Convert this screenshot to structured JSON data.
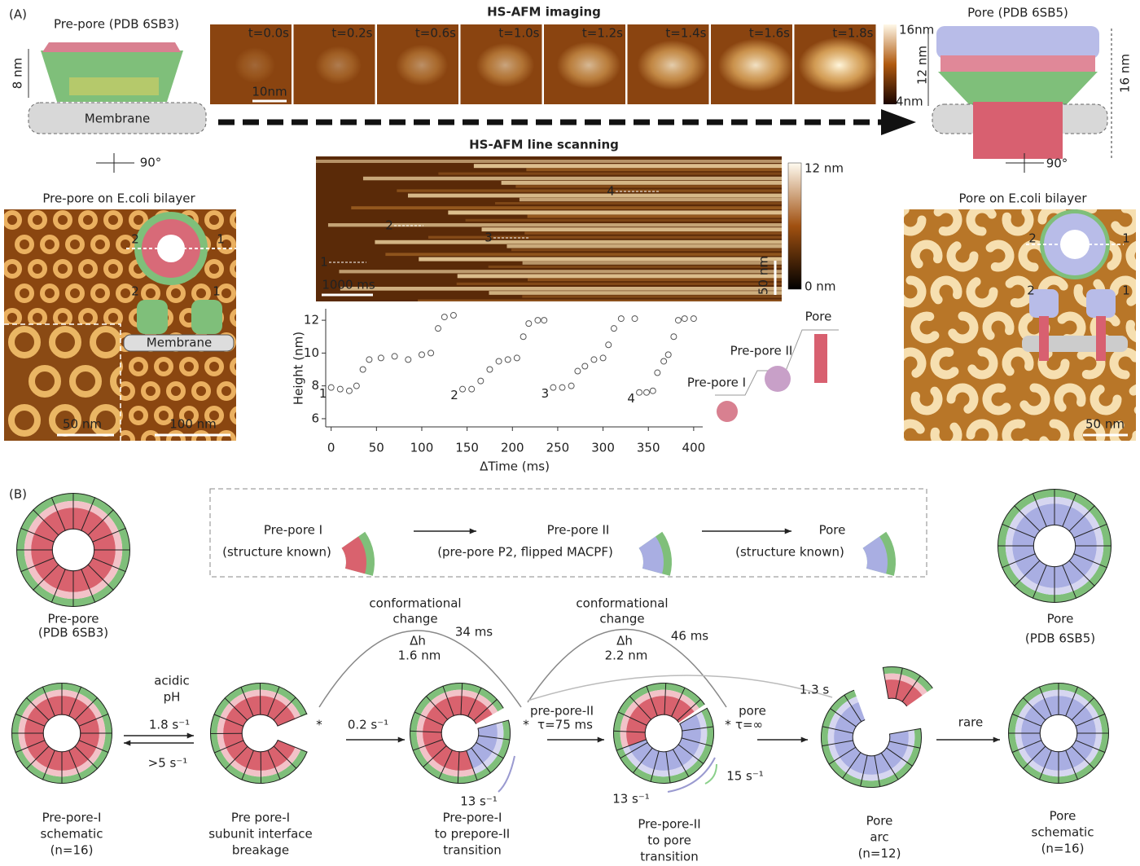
{
  "panel_a": {
    "label": "(A)",
    "prepore_model": {
      "title": "Pre-pore (PDB 6SB3)",
      "height": "8 nm",
      "membrane": "Membrane",
      "rotation": "90°"
    },
    "imaging": {
      "title": "HS-AFM imaging",
      "frames": [
        "t=0.0s",
        "t=0.2s",
        "t=0.6s",
        "t=1.0s",
        "t=1.2s",
        "t=1.4s",
        "t=1.6s",
        "t=1.8s"
      ],
      "scale_bar": "10nm",
      "colorbar_max": "16nm",
      "colorbar_min": "4nm",
      "height_change": "12 nm"
    },
    "pore_model": {
      "title": "Pore (PDB 6SB5)",
      "height": "16 nm",
      "rotation": "90°"
    },
    "prepore_afm": {
      "title": "Pre-pore on E.coli bilayer",
      "markers": [
        "2",
        "1",
        "2",
        "1"
      ],
      "membrane": "Membrane",
      "scale_inset": "50 nm",
      "scale_main": "100 nm"
    },
    "line_scan": {
      "title": "HS-AFM line scanning",
      "colorbar_max": "12 nm",
      "colorbar_min": "0 nm",
      "time_bar": "1000 ms",
      "space_bar": "50 nm",
      "events": [
        "1",
        "2",
        "3",
        "4"
      ]
    },
    "height_plot": {
      "type": "scatter",
      "x_label": "ΔTime (ms)",
      "y_label": "Height (nm)",
      "xlim": [
        -6,
        410
      ],
      "ylim": [
        5.5,
        12.7
      ],
      "xticks": [
        0,
        50,
        100,
        150,
        200,
        250,
        300,
        350,
        400
      ],
      "yticks": [
        6,
        8,
        10,
        12
      ],
      "series": [
        {
          "name": "1",
          "color": "#555555",
          "x": [
            0,
            10,
            20,
            28,
            35,
            42,
            55,
            70,
            85,
            100,
            110,
            118,
            125,
            135
          ],
          "y": [
            7.9,
            7.8,
            7.7,
            8.0,
            9.0,
            9.6,
            9.7,
            9.8,
            9.6,
            9.9,
            10.0,
            11.5,
            12.2,
            12.3
          ]
        },
        {
          "name": "2",
          "color": "#555555",
          "x": [
            145,
            155,
            165,
            175,
            185,
            195,
            205,
            212,
            218,
            228,
            235
          ],
          "y": [
            7.8,
            7.8,
            8.3,
            9.0,
            9.5,
            9.6,
            9.7,
            11.0,
            11.8,
            12.0,
            12.0
          ]
        },
        {
          "name": "3",
          "color": "#555555",
          "x": [
            245,
            255,
            265,
            272,
            280,
            290,
            300,
            306,
            312,
            320,
            335
          ],
          "y": [
            7.9,
            7.9,
            8.0,
            8.9,
            9.2,
            9.6,
            9.7,
            10.5,
            11.5,
            12.1,
            12.1
          ]
        },
        {
          "name": "4",
          "color": "#555555",
          "x": [
            340,
            348,
            355,
            360,
            367,
            372,
            378,
            383,
            390,
            400
          ],
          "y": [
            7.6,
            7.6,
            7.7,
            8.8,
            9.5,
            9.9,
            11.0,
            12.0,
            12.1,
            12.1
          ]
        }
      ],
      "states": [
        "Pre-pore I",
        "Pre-pore II",
        "Pore"
      ]
    },
    "pore_afm": {
      "title": "Pore on E.coli bilayer",
      "markers": [
        "2",
        "1",
        "2",
        "1"
      ],
      "scale": "50 nm"
    }
  },
  "panel_b": {
    "label": "(B)",
    "prepore_structure": {
      "name": "Pre-pore",
      "pdb": "(PDB 6SB3)"
    },
    "pore_structure": {
      "name": "Pore",
      "pdb": "(PDB 6SB5)"
    },
    "legend": [
      {
        "name": "Pre-pore I",
        "note": "(structure known)"
      },
      {
        "name": "Pre-pore II",
        "note": "(pre-pore P2, flipped MACPF)"
      },
      {
        "name": "Pore",
        "note": "(structure known)"
      }
    ],
    "transitions": {
      "conf1": {
        "title": [
          "conformational",
          "change"
        ],
        "dh": "Δh",
        "height": "1.6 nm",
        "time": "34 ms"
      },
      "conf2": {
        "title": [
          "conformational",
          "change"
        ],
        "dh": "Δh",
        "height": "2.2 nm",
        "time": "46 ms"
      },
      "slow": "1.3 s",
      "acidic": [
        "acidic",
        "pH"
      ],
      "forward1": "1.8 s⁻¹",
      "reverse1": ">5 s⁻¹",
      "rate2": "0.2 s⁻¹",
      "state3": [
        "pre-pore-II",
        "τ=75 ms"
      ],
      "state4": [
        "pore",
        "τ=∞"
      ],
      "back3": "13 s⁻¹",
      "back4": "13 s⁻¹",
      "fwd4": "15 s⁻¹",
      "rare": "rare",
      "star": "*"
    },
    "stages": [
      [
        "Pre-pore-I",
        "schematic",
        "(n=16)"
      ],
      [
        "Pre pore-I",
        "subunit interface",
        "breakage"
      ],
      [
        "Pre-pore-I",
        "to prepore-II",
        "transition"
      ],
      [
        "Pre-pore-II",
        "to pore",
        "transition"
      ],
      [
        "Pore",
        "arc",
        "(n=12)"
      ],
      [
        "Pore",
        "schematic",
        "(n=16)"
      ]
    ]
  }
}
